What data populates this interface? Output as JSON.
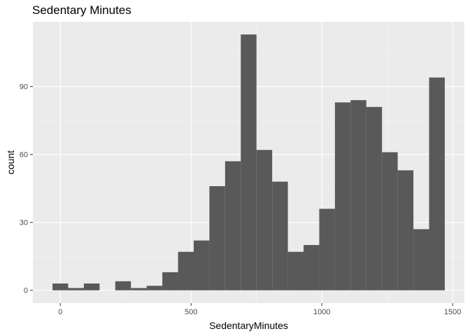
{
  "chart_data": {
    "type": "bar",
    "title": "Sedentary Minutes",
    "xlabel": "SedentaryMinutes",
    "ylabel": "count",
    "bin_width": 60,
    "bins": [
      {
        "start": -30,
        "end": 30,
        "count": 3
      },
      {
        "start": 30,
        "end": 90,
        "count": 1
      },
      {
        "start": 90,
        "end": 150,
        "count": 3
      },
      {
        "start": 150,
        "end": 210,
        "count": 0
      },
      {
        "start": 210,
        "end": 270,
        "count": 4
      },
      {
        "start": 270,
        "end": 330,
        "count": 1
      },
      {
        "start": 330,
        "end": 390,
        "count": 2
      },
      {
        "start": 390,
        "end": 450,
        "count": 8
      },
      {
        "start": 450,
        "end": 510,
        "count": 17
      },
      {
        "start": 510,
        "end": 570,
        "count": 22
      },
      {
        "start": 570,
        "end": 630,
        "count": 46
      },
      {
        "start": 630,
        "end": 690,
        "count": 57
      },
      {
        "start": 690,
        "end": 750,
        "count": 113
      },
      {
        "start": 750,
        "end": 810,
        "count": 62
      },
      {
        "start": 810,
        "end": 870,
        "count": 48
      },
      {
        "start": 870,
        "end": 930,
        "count": 17
      },
      {
        "start": 930,
        "end": 990,
        "count": 20
      },
      {
        "start": 990,
        "end": 1050,
        "count": 36
      },
      {
        "start": 1050,
        "end": 1110,
        "count": 83
      },
      {
        "start": 1110,
        "end": 1170,
        "count": 84
      },
      {
        "start": 1170,
        "end": 1230,
        "count": 81
      },
      {
        "start": 1230,
        "end": 1290,
        "count": 61
      },
      {
        "start": 1290,
        "end": 1350,
        "count": 53
      },
      {
        "start": 1350,
        "end": 1410,
        "count": 27
      },
      {
        "start": 1410,
        "end": 1470,
        "count": 94
      }
    ],
    "xlim": [
      -105,
      1545
    ],
    "ylim": [
      -5.65,
      118.65
    ],
    "x_ticks": [
      0,
      500,
      1000,
      1500
    ],
    "x_tick_labels": [
      "0",
      "500",
      "1000",
      "1500"
    ],
    "y_ticks": [
      0,
      30,
      60,
      90
    ],
    "y_tick_labels": [
      "0",
      "30",
      "60",
      "90"
    ],
    "grid": true,
    "colors": {
      "bar": "#595959",
      "panel": "#ebebeb",
      "grid_major": "#ffffff",
      "grid_minor": "#f5f5f5",
      "tick": "#333333"
    }
  }
}
